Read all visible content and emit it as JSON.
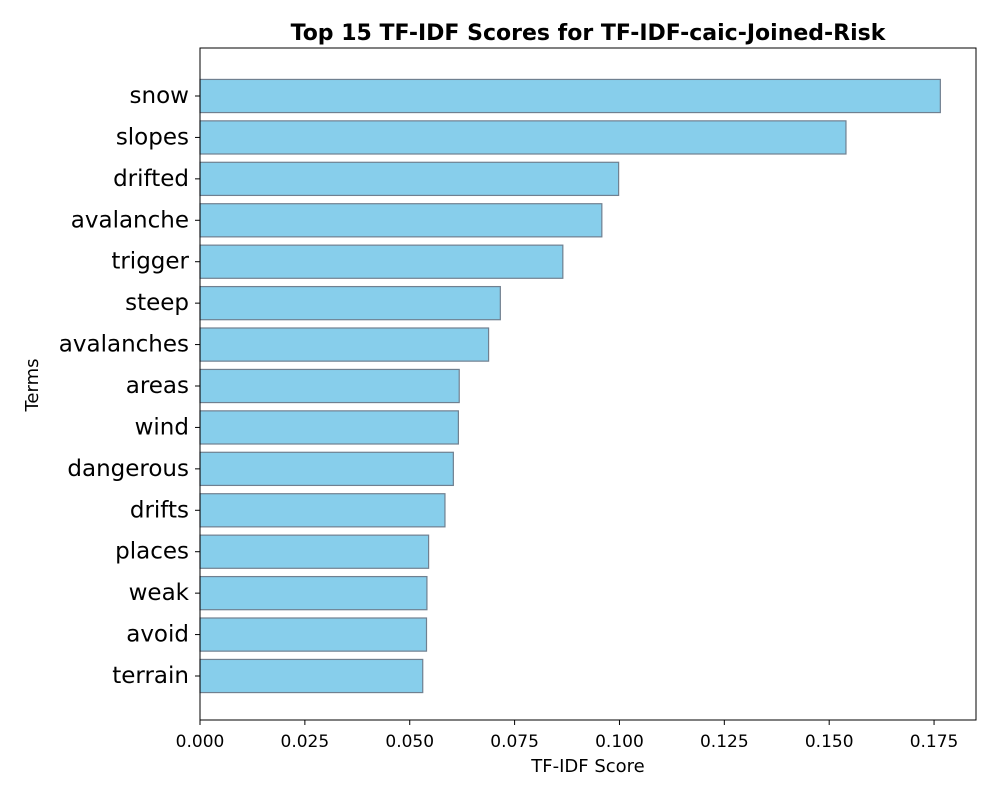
{
  "chart_data": {
    "type": "bar",
    "orientation": "horizontal",
    "title": "Top 15 TF-IDF Scores for TF-IDF-caic-Joined-Risk",
    "xlabel": "TF-IDF Score",
    "ylabel": "Terms",
    "categories": [
      "snow",
      "slopes",
      "drifted",
      "avalanche",
      "trigger",
      "steep",
      "avalanches",
      "areas",
      "wind",
      "dangerous",
      "drifts",
      "places",
      "weak",
      "avoid",
      "terrain"
    ],
    "values": [
      0.1765,
      0.154,
      0.0998,
      0.0958,
      0.0865,
      0.0716,
      0.0688,
      0.0618,
      0.0616,
      0.0604,
      0.0584,
      0.0545,
      0.0541,
      0.054,
      0.0531
    ],
    "xlim": [
      0.0,
      0.185
    ],
    "xticks": [
      0.0,
      0.025,
      0.05,
      0.075,
      0.1,
      0.125,
      0.15,
      0.175
    ],
    "xtick_labels": [
      "0.000",
      "0.025",
      "0.050",
      "0.075",
      "0.100",
      "0.125",
      "0.150",
      "0.175"
    ],
    "grid": false,
    "colors": {
      "bar_fill": "#87CEEB",
      "bar_edge": "#708090",
      "axis": "#000000"
    }
  }
}
